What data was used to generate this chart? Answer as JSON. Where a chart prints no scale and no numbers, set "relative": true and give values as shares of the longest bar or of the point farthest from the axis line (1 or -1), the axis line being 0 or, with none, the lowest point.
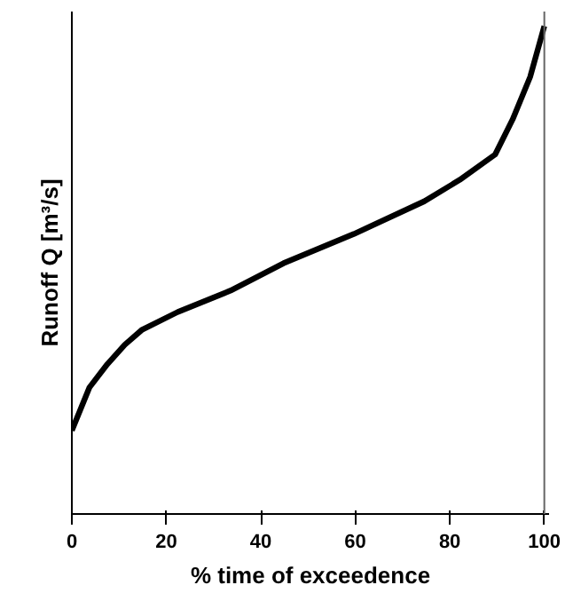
{
  "chart_data": {
    "type": "line",
    "relative": true,
    "xlabel": "% time of exceedence",
    "ylabel": "Runoff Q [m³/s]",
    "x": [
      0,
      3.7,
      7.5,
      11.2,
      14.9,
      22.4,
      33.6,
      44.8,
      59.7,
      74.6,
      82.1,
      89.6,
      93.3,
      97,
      100
    ],
    "series": [
      {
        "color": "#000000",
        "values": [
          0.171,
          0.259,
          0.307,
          0.347,
          0.378,
          0.414,
          0.458,
          0.514,
          0.574,
          0.641,
          0.685,
          0.737,
          0.809,
          0.896,
          1.0
        ]
      }
    ],
    "xlim": [
      0,
      101
    ],
    "xticks": [
      0,
      20,
      40,
      60,
      80,
      100
    ],
    "tick_labels": "x",
    "grid": false,
    "ref_lines": [
      {
        "axis": "x",
        "value": 100,
        "color": "#666666"
      }
    ]
  }
}
